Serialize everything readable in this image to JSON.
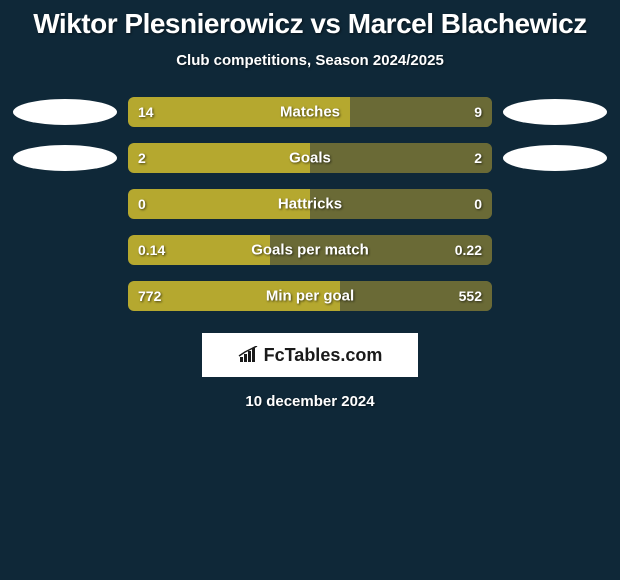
{
  "title": "Wiktor Plesnierowicz vs Marcel Blachewicz",
  "subtitle": "Club competitions, Season 2024/2025",
  "date": "10 december 2024",
  "brand": "FcTables.com",
  "colors": {
    "background": "#0f2838",
    "bar_left": "#b5a82f",
    "bar_right": "#6a6a36",
    "ellipse": "#ffffff",
    "text": "#ffffff"
  },
  "rows": [
    {
      "label": "Matches",
      "left_value": "14",
      "right_value": "9",
      "left_pct": 60.9,
      "right_pct": 39.1,
      "show_left_ellipse": true,
      "show_right_ellipse": true
    },
    {
      "label": "Goals",
      "left_value": "2",
      "right_value": "2",
      "left_pct": 50,
      "right_pct": 50,
      "show_left_ellipse": true,
      "show_right_ellipse": true
    },
    {
      "label": "Hattricks",
      "left_value": "0",
      "right_value": "0",
      "left_pct": 50,
      "right_pct": 50,
      "show_left_ellipse": false,
      "show_right_ellipse": false
    },
    {
      "label": "Goals per match",
      "left_value": "0.14",
      "right_value": "0.22",
      "left_pct": 38.9,
      "right_pct": 61.1,
      "show_left_ellipse": false,
      "show_right_ellipse": false
    },
    {
      "label": "Min per goal",
      "left_value": "772",
      "right_value": "552",
      "left_pct": 58.3,
      "right_pct": 41.7,
      "show_left_ellipse": false,
      "show_right_ellipse": false
    }
  ]
}
